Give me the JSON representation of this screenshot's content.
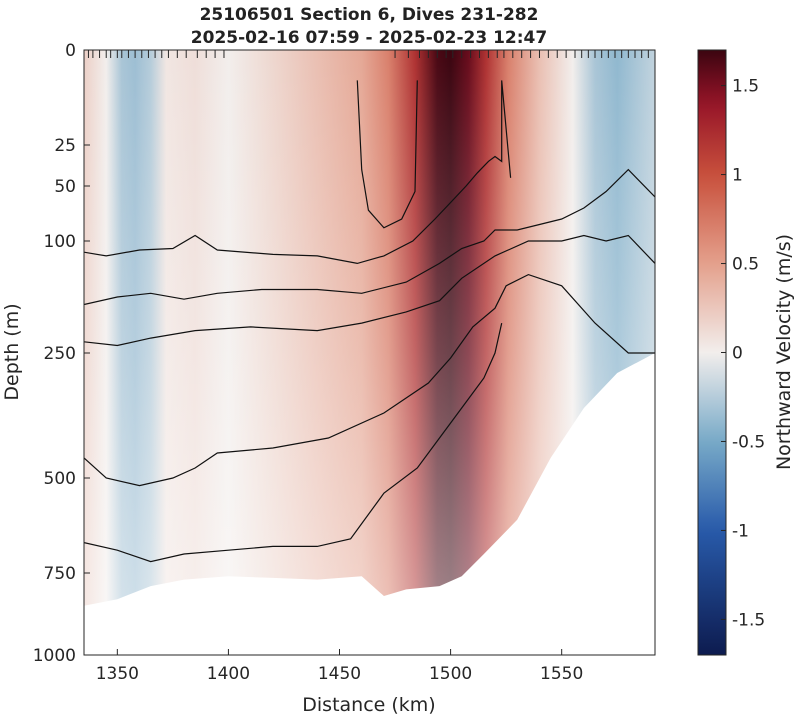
{
  "chart_data": {
    "type": "heatmap",
    "title": [
      "25106501 Section 6, Dives 231-282",
      "2025-02-16 07:59 - 2025-02-23 12:47"
    ],
    "xlabel": "Distance (km)",
    "ylabel": "Depth (m)",
    "xlim": [
      1335,
      1592
    ],
    "ylim": [
      0,
      1000
    ],
    "x_ticks": [
      1350,
      1400,
      1450,
      1500,
      1550
    ],
    "y_ticks": [
      0,
      25,
      50,
      100,
      250,
      500,
      750,
      1000
    ],
    "y_scale": "piecewise (expanded near surface)",
    "colorbar": {
      "label": "Northward Velocity (m/s)",
      "range": [
        -1.7,
        1.7
      ],
      "ticks": [
        -1.5,
        -1,
        -0.5,
        0,
        0.5,
        1,
        1.5
      ],
      "colors": {
        "negative": "#0d1b4f",
        "zero": "#f2eeec",
        "positive": "#3b0510"
      }
    },
    "velocity_profile": {
      "x": [
        1335,
        1345,
        1352,
        1358,
        1365,
        1372,
        1385,
        1400,
        1420,
        1440,
        1460,
        1472,
        1484,
        1494,
        1500,
        1508,
        1516,
        1526,
        1540,
        1555,
        1565,
        1575,
        1592
      ],
      "surface_velocity": [
        0.2,
        0.0,
        -0.3,
        -0.35,
        -0.25,
        0.05,
        0.1,
        0.0,
        0.15,
        0.3,
        0.45,
        0.7,
        1.2,
        1.65,
        1.7,
        1.55,
        1.2,
        0.7,
        0.3,
        0.0,
        -0.3,
        -0.4,
        -0.2
      ]
    },
    "dive_positions_km": [
      1337,
      1339,
      1342,
      1345,
      1347,
      1350,
      1352,
      1355,
      1358,
      1361,
      1364,
      1367,
      1370,
      1373,
      1377,
      1381,
      1386,
      1390,
      1394,
      1398,
      1475,
      1481,
      1486,
      1490,
      1494,
      1498,
      1501,
      1505,
      1509,
      1513,
      1517,
      1521,
      1524,
      1528,
      1532,
      1536,
      1540,
      1544,
      1548,
      1552,
      1556,
      1559,
      1562,
      1565,
      1568,
      1571,
      1574,
      1577,
      1580,
      1583,
      1586,
      1589
    ],
    "bottom_depth_profile": {
      "x": [
        1335,
        1350,
        1365,
        1380,
        1400,
        1420,
        1440,
        1460,
        1470,
        1480,
        1495,
        1505,
        1515,
        1530,
        1545,
        1560,
        1575,
        1592
      ],
      "depth": [
        850,
        830,
        790,
        770,
        760,
        765,
        770,
        760,
        820,
        800,
        790,
        760,
        700,
        610,
        460,
        360,
        290,
        250
      ]
    },
    "contours": [
      {
        "x": [
          1458,
          1460,
          1463,
          1470,
          1478,
          1484,
          1485
        ],
        "depth": [
          8,
          40,
          72,
          88,
          80,
          55,
          8
        ]
      },
      {
        "x": [
          1335,
          1345,
          1360,
          1375,
          1385,
          1395,
          1420,
          1440,
          1458,
          1470,
          1483,
          1493,
          1500,
          1507,
          1512,
          1517,
          1520,
          1523,
          1523,
          1527
        ],
        "depth": [
          115,
          120,
          112,
          110,
          95,
          112,
          118,
          120,
          130,
          120,
          100,
          80,
          65,
          50,
          42,
          35,
          32,
          35,
          8,
          45
        ]
      },
      {
        "x": [
          1335,
          1350,
          1365,
          1380,
          1395,
          1415,
          1440,
          1460,
          1480,
          1495,
          1505,
          1515,
          1520,
          1530,
          1540,
          1550,
          1560,
          1570,
          1580,
          1592
        ],
        "depth": [
          185,
          175,
          170,
          178,
          170,
          165,
          165,
          170,
          155,
          130,
          110,
          100,
          90,
          90,
          85,
          80,
          70,
          55,
          40,
          60
        ]
      },
      {
        "x": [
          1335,
          1350,
          1365,
          1385,
          1410,
          1440,
          1460,
          1480,
          1495,
          1505,
          1520,
          1535,
          1550,
          1560,
          1570,
          1580,
          1592
        ],
        "depth": [
          235,
          240,
          230,
          220,
          215,
          220,
          210,
          195,
          180,
          150,
          120,
          100,
          100,
          95,
          100,
          95,
          130
        ]
      },
      {
        "x": [
          1335,
          1345,
          1360,
          1375,
          1385,
          1395,
          1420,
          1445,
          1470,
          1490,
          1500,
          1510,
          1520,
          1525,
          1535,
          1550,
          1565,
          1580,
          1592
        ],
        "depth": [
          460,
          500,
          520,
          500,
          480,
          450,
          440,
          420,
          370,
          310,
          260,
          215,
          190,
          160,
          145,
          160,
          210,
          250,
          250
        ]
      },
      {
        "x": [
          1335,
          1350,
          1365,
          1380,
          1400,
          1420,
          1440,
          1455,
          1460,
          1470,
          1485,
          1495,
          1505,
          1515,
          1520,
          1523
        ],
        "depth": [
          670,
          690,
          720,
          700,
          690,
          680,
          680,
          660,
          620,
          540,
          480,
          420,
          360,
          300,
          250,
          210
        ]
      }
    ]
  }
}
